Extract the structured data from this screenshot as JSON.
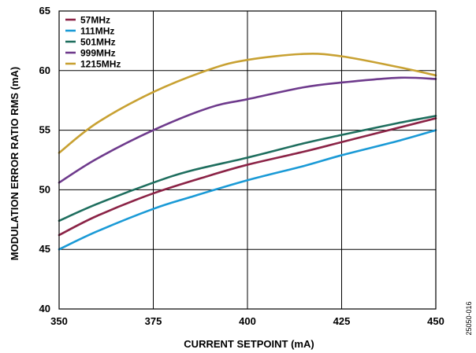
{
  "chart_data": {
    "type": "line",
    "xlabel": "CURRENT SETPOINT (mA)",
    "ylabel": "MODULATION ERROR RATIO RMS (mA)",
    "xlim": [
      350,
      450
    ],
    "ylim": [
      40,
      65
    ],
    "xticks": [
      350,
      375,
      400,
      425,
      450
    ],
    "yticks": [
      40,
      45,
      50,
      55,
      60,
      65
    ],
    "grid": true,
    "legend_position": "top-left",
    "series": [
      {
        "name": "57MHz",
        "color": "#8b2346",
        "x": [
          350,
          360,
          375,
          390,
          400,
          415,
          425,
          440,
          450
        ],
        "y": [
          46.2,
          47.8,
          49.7,
          51.2,
          52.1,
          53.2,
          54.0,
          55.2,
          56.0
        ]
      },
      {
        "name": "111MHz",
        "color": "#1a9ad6",
        "x": [
          350,
          360,
          375,
          385,
          400,
          415,
          425,
          440,
          450
        ],
        "y": [
          45.0,
          46.5,
          48.4,
          49.4,
          50.8,
          52.0,
          52.9,
          54.1,
          55.0
        ]
      },
      {
        "name": "501MHz",
        "color": "#1e6e5e",
        "x": [
          350,
          360,
          375,
          385,
          400,
          415,
          425,
          440,
          450
        ],
        "y": [
          47.4,
          48.8,
          50.6,
          51.6,
          52.7,
          53.9,
          54.6,
          55.6,
          56.2
        ]
      },
      {
        "name": "999MHz",
        "color": "#6e3a8c",
        "x": [
          350,
          360,
          375,
          390,
          400,
          415,
          425,
          440,
          450
        ],
        "y": [
          50.6,
          52.6,
          55.0,
          56.9,
          57.6,
          58.6,
          59.0,
          59.4,
          59.3
        ]
      },
      {
        "name": "1215MHz",
        "color": "#c8a132",
        "x": [
          350,
          360,
          375,
          390,
          400,
          415,
          425,
          440,
          450
        ],
        "y": [
          53.1,
          55.6,
          58.2,
          60.1,
          60.9,
          61.4,
          61.2,
          60.3,
          59.6
        ]
      }
    ]
  },
  "figure_id": "25050-016"
}
